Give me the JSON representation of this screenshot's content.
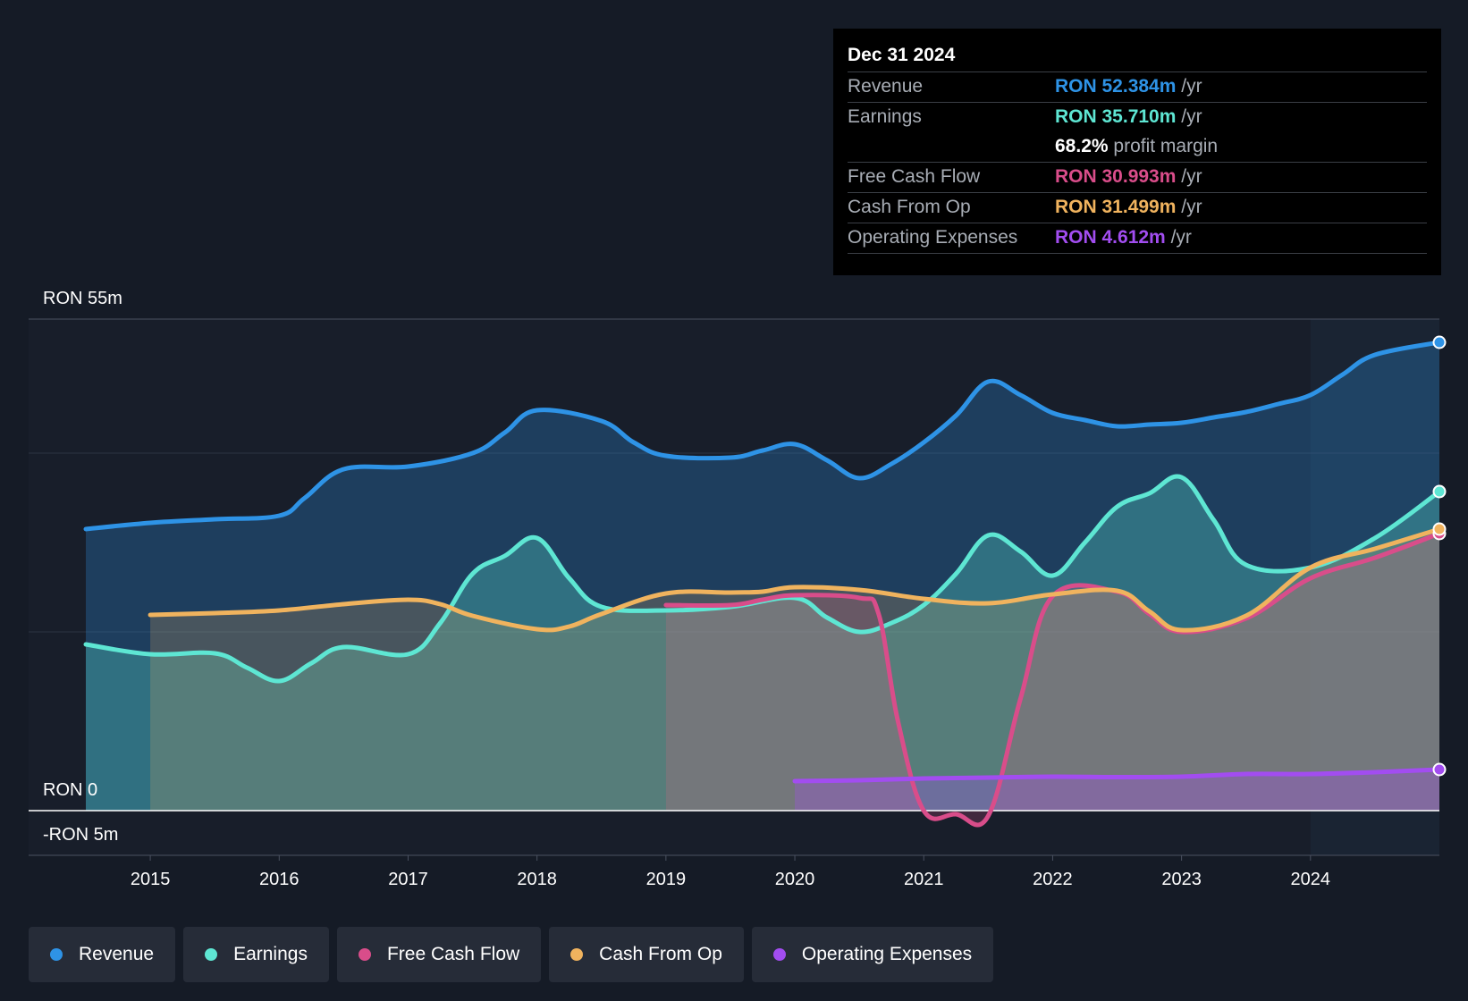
{
  "tooltip": {
    "date": "Dec 31 2024",
    "rows": [
      {
        "label": "Revenue",
        "value": "RON 52.384m",
        "unit": "/yr",
        "color": "#2e93e6"
      },
      {
        "label": "Earnings",
        "value": "RON 35.710m",
        "unit": "/yr",
        "color": "#5ee6d3"
      },
      {
        "label": "",
        "value": "68.2%",
        "unit": "profit margin",
        "color": "#ffffff"
      },
      {
        "label": "Free Cash Flow",
        "value": "RON 30.993m",
        "unit": "/yr",
        "color": "#d94d8a"
      },
      {
        "label": "Cash From Op",
        "value": "RON 31.499m",
        "unit": "/yr",
        "color": "#f0b35e"
      },
      {
        "label": "Operating Expenses",
        "value": "RON 4.612m",
        "unit": "/yr",
        "color": "#a24df0"
      }
    ]
  },
  "legend": [
    {
      "label": "Revenue",
      "color": "#2e93e6"
    },
    {
      "label": "Earnings",
      "color": "#5ee6d3"
    },
    {
      "label": "Free Cash Flow",
      "color": "#d94d8a"
    },
    {
      "label": "Cash From Op",
      "color": "#f0b35e"
    },
    {
      "label": "Operating Expenses",
      "color": "#a24df0"
    }
  ],
  "chart_data": {
    "type": "area",
    "title": "",
    "xlabel": "",
    "ylabel": "",
    "ylim": [
      -5,
      55
    ],
    "y_tick_labels": {
      "top": "RON 55m",
      "zero": "RON 0",
      "bottom": "-RON 5m"
    },
    "x_ticks": [
      2015,
      2016,
      2017,
      2018,
      2019,
      2020,
      2021,
      2022,
      2023,
      2024
    ],
    "x_range": [
      2014.5,
      2025.0
    ],
    "forecast_start": 2024.0,
    "series": [
      {
        "name": "Revenue",
        "color": "#2e93e6",
        "points": [
          [
            2014.5,
            31.5
          ],
          [
            2015.0,
            32.2
          ],
          [
            2015.5,
            32.6
          ],
          [
            2016.0,
            33.0
          ],
          [
            2016.2,
            35.0
          ],
          [
            2016.5,
            38.2
          ],
          [
            2017.0,
            38.5
          ],
          [
            2017.5,
            40.0
          ],
          [
            2017.75,
            42.3
          ],
          [
            2018.0,
            44.8
          ],
          [
            2018.5,
            43.6
          ],
          [
            2018.75,
            41.2
          ],
          [
            2019.0,
            39.7
          ],
          [
            2019.5,
            39.5
          ],
          [
            2019.75,
            40.3
          ],
          [
            2020.0,
            41.0
          ],
          [
            2020.25,
            39.2
          ],
          [
            2020.5,
            37.2
          ],
          [
            2020.75,
            38.8
          ],
          [
            2021.0,
            41.2
          ],
          [
            2021.25,
            44.2
          ],
          [
            2021.5,
            48.0
          ],
          [
            2021.75,
            46.5
          ],
          [
            2022.0,
            44.5
          ],
          [
            2022.25,
            43.7
          ],
          [
            2022.5,
            43.0
          ],
          [
            2022.75,
            43.2
          ],
          [
            2023.0,
            43.4
          ],
          [
            2023.25,
            44.0
          ],
          [
            2023.5,
            44.6
          ],
          [
            2023.75,
            45.5
          ],
          [
            2024.0,
            46.5
          ],
          [
            2024.25,
            48.8
          ],
          [
            2024.5,
            51.0
          ],
          [
            2025.0,
            52.4
          ]
        ]
      },
      {
        "name": "Earnings",
        "color": "#5ee6d3",
        "points": [
          [
            2014.5,
            18.6
          ],
          [
            2015.0,
            17.5
          ],
          [
            2015.5,
            17.6
          ],
          [
            2015.75,
            16.0
          ],
          [
            2016.0,
            14.5
          ],
          [
            2016.25,
            16.5
          ],
          [
            2016.5,
            18.3
          ],
          [
            2017.0,
            17.5
          ],
          [
            2017.25,
            21.0
          ],
          [
            2017.5,
            26.5
          ],
          [
            2017.75,
            28.5
          ],
          [
            2018.0,
            30.5
          ],
          [
            2018.25,
            26.0
          ],
          [
            2018.5,
            22.8
          ],
          [
            2019.0,
            22.4
          ],
          [
            2019.5,
            22.8
          ],
          [
            2020.0,
            23.8
          ],
          [
            2020.25,
            21.6
          ],
          [
            2020.5,
            20.0
          ],
          [
            2020.75,
            21.0
          ],
          [
            2021.0,
            23.0
          ],
          [
            2021.25,
            26.5
          ],
          [
            2021.5,
            30.8
          ],
          [
            2021.75,
            29.0
          ],
          [
            2022.0,
            26.3
          ],
          [
            2022.25,
            30.0
          ],
          [
            2022.5,
            34.0
          ],
          [
            2022.75,
            35.5
          ],
          [
            2023.0,
            37.3
          ],
          [
            2023.25,
            32.5
          ],
          [
            2023.5,
            27.5
          ],
          [
            2024.0,
            27.2
          ],
          [
            2024.5,
            30.5
          ],
          [
            2025.0,
            35.7
          ]
        ]
      },
      {
        "name": "Free Cash Flow",
        "color": "#d94d8a",
        "points": [
          [
            2019.0,
            23.0
          ],
          [
            2019.5,
            23.0
          ],
          [
            2019.75,
            23.6
          ],
          [
            2020.0,
            24.1
          ],
          [
            2020.5,
            23.8
          ],
          [
            2020.65,
            22.0
          ],
          [
            2020.8,
            10.0
          ],
          [
            2021.0,
            0.0
          ],
          [
            2021.25,
            -0.4
          ],
          [
            2021.5,
            -0.6
          ],
          [
            2021.75,
            12.5
          ],
          [
            2022.0,
            24.0
          ],
          [
            2022.5,
            24.5
          ],
          [
            2022.75,
            22.0
          ],
          [
            2023.0,
            20.0
          ],
          [
            2023.5,
            21.5
          ],
          [
            2024.0,
            26.0
          ],
          [
            2024.5,
            28.3
          ],
          [
            2025.0,
            31.0
          ]
        ]
      },
      {
        "name": "Cash From Op",
        "color": "#f0b35e",
        "points": [
          [
            2015.0,
            21.9
          ],
          [
            2015.5,
            22.1
          ],
          [
            2016.0,
            22.4
          ],
          [
            2016.5,
            23.1
          ],
          [
            2017.0,
            23.6
          ],
          [
            2017.25,
            23.1
          ],
          [
            2017.5,
            21.8
          ],
          [
            2018.0,
            20.3
          ],
          [
            2018.25,
            20.6
          ],
          [
            2018.5,
            22.0
          ],
          [
            2019.0,
            24.3
          ],
          [
            2019.5,
            24.4
          ],
          [
            2019.75,
            24.5
          ],
          [
            2020.0,
            25.0
          ],
          [
            2020.5,
            24.7
          ],
          [
            2021.0,
            23.7
          ],
          [
            2021.5,
            23.2
          ],
          [
            2022.0,
            24.2
          ],
          [
            2022.5,
            24.6
          ],
          [
            2022.75,
            22.3
          ],
          [
            2023.0,
            20.2
          ],
          [
            2023.5,
            21.8
          ],
          [
            2024.0,
            27.2
          ],
          [
            2024.5,
            29.3
          ],
          [
            2025.0,
            31.5
          ]
        ]
      },
      {
        "name": "Operating Expenses",
        "color": "#a24df0",
        "points": [
          [
            2020.0,
            3.3
          ],
          [
            2020.5,
            3.4
          ],
          [
            2021.0,
            3.6
          ],
          [
            2021.5,
            3.7
          ],
          [
            2022.0,
            3.8
          ],
          [
            2022.5,
            3.75
          ],
          [
            2023.0,
            3.8
          ],
          [
            2023.5,
            4.1
          ],
          [
            2024.0,
            4.1
          ],
          [
            2024.5,
            4.3
          ],
          [
            2025.0,
            4.6
          ]
        ]
      }
    ]
  }
}
